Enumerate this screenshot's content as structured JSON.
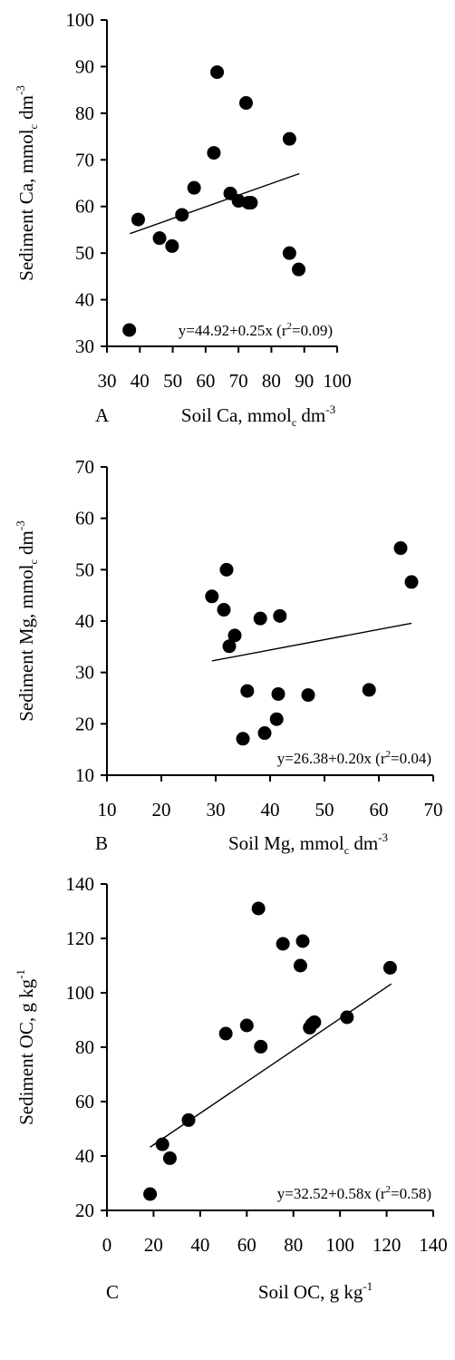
{
  "chart_data": [
    {
      "type": "scatter",
      "panel_label": "A",
      "xlabel": {
        "main": "Soil Ca, mmol",
        "sub": "c",
        "unit": " dm",
        "sup": "-3"
      },
      "ylabel": {
        "main": "Sediment Ca, mmol",
        "sub": "c",
        "unit": " dm",
        "sup": "-3"
      },
      "xlim": [
        30,
        100
      ],
      "ylim": [
        30,
        100
      ],
      "xticks": [
        30,
        40,
        50,
        60,
        70,
        80,
        90,
        100
      ],
      "yticks": [
        30,
        40,
        50,
        60,
        70,
        80,
        90,
        100
      ],
      "equation": {
        "text": "y=44.92+0.25x (r",
        "sup": "2",
        "tail": "=0.09)"
      },
      "trend": {
        "intercept": 44.92,
        "slope": 0.25,
        "x_range": [
          37,
          88.5
        ]
      },
      "points": [
        [
          36.8,
          33.5
        ],
        [
          39.5,
          57.2
        ],
        [
          46.0,
          53.2
        ],
        [
          49.8,
          51.5
        ],
        [
          52.8,
          58.2
        ],
        [
          56.5,
          64.0
        ],
        [
          62.5,
          71.5
        ],
        [
          63.5,
          88.8
        ],
        [
          67.5,
          62.8
        ],
        [
          70.0,
          61.2
        ],
        [
          72.3,
          82.2
        ],
        [
          73.0,
          60.8
        ],
        [
          73.8,
          60.8
        ],
        [
          85.5,
          74.5
        ],
        [
          85.5,
          50.0
        ],
        [
          88.3,
          46.5
        ]
      ]
    },
    {
      "type": "scatter",
      "panel_label": "B",
      "xlabel": {
        "main": "Soil Mg, mmol",
        "sub": "c",
        "unit": " dm",
        "sup": "-3"
      },
      "ylabel": {
        "main": "Sediment Mg, mmol",
        "sub": "c",
        "unit": " dm",
        "sup": "-3"
      },
      "xlim": [
        10,
        70
      ],
      "ylim": [
        10,
        70
      ],
      "xticks": [
        10,
        20,
        30,
        40,
        50,
        60,
        70
      ],
      "yticks": [
        10,
        20,
        30,
        40,
        50,
        60,
        70
      ],
      "equation": {
        "text": "y=26.38+0.20x (r",
        "sup": "2",
        "tail": "=0.04)"
      },
      "trend": {
        "intercept": 26.38,
        "slope": 0.2,
        "x_range": [
          29.3,
          66
        ]
      },
      "points": [
        [
          29.3,
          44.8
        ],
        [
          31.5,
          42.2
        ],
        [
          32.0,
          50.0
        ],
        [
          32.5,
          35.1
        ],
        [
          33.5,
          37.2
        ],
        [
          35.0,
          17.1
        ],
        [
          35.8,
          26.4
        ],
        [
          38.2,
          40.5
        ],
        [
          39.0,
          18.2
        ],
        [
          41.2,
          20.9
        ],
        [
          41.5,
          25.8
        ],
        [
          41.8,
          41.0
        ],
        [
          47.0,
          25.6
        ],
        [
          58.2,
          26.6
        ],
        [
          64.0,
          54.2
        ],
        [
          66.0,
          47.6
        ]
      ]
    },
    {
      "type": "scatter",
      "panel_label": "C",
      "xlabel": {
        "main": "Soil OC, g kg",
        "sub": "",
        "unit": "",
        "sup": "-1"
      },
      "ylabel": {
        "main": "Sediment OC, g kg",
        "sub": "",
        "unit": "",
        "sup": "-1"
      },
      "xlim": [
        0,
        140
      ],
      "ylim": [
        20,
        140
      ],
      "xticks": [
        0,
        20,
        40,
        60,
        80,
        100,
        120,
        140
      ],
      "yticks": [
        20,
        40,
        60,
        80,
        100,
        120,
        140
      ],
      "equation": {
        "text": "y=32.52+0.58x (r",
        "sup": "2",
        "tail": "=0.58)"
      },
      "trend": {
        "intercept": 32.52,
        "slope": 0.58,
        "x_range": [
          18.5,
          122
        ]
      },
      "points": [
        [
          18.5,
          26.0
        ],
        [
          23.8,
          44.3
        ],
        [
          27.0,
          39.2
        ],
        [
          35.0,
          53.2
        ],
        [
          51.0,
          85.0
        ],
        [
          60.0,
          88.0
        ],
        [
          65.0,
          131.0
        ],
        [
          66.0,
          80.2
        ],
        [
          75.5,
          118.0
        ],
        [
          83.0,
          110.0
        ],
        [
          84.0,
          119.0
        ],
        [
          87.0,
          87.2
        ],
        [
          88.0,
          88.5
        ],
        [
          89.0,
          89.2
        ],
        [
          103.0,
          91.0
        ],
        [
          121.5,
          109.2
        ]
      ]
    }
  ]
}
